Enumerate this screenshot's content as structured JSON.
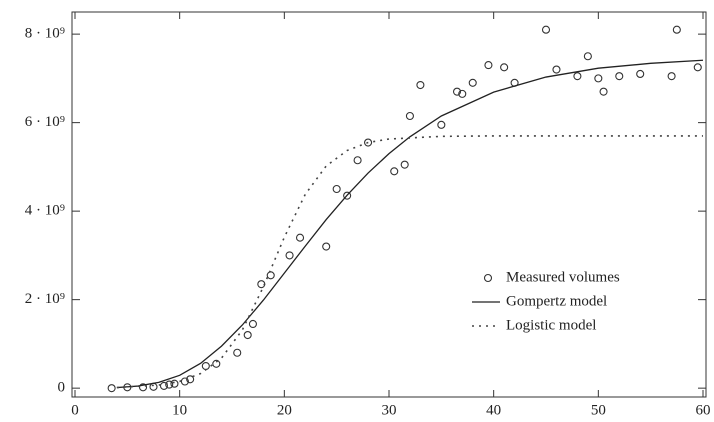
{
  "chart_data": {
    "type": "scatter-line",
    "xlim": [
      0,
      60
    ],
    "xticks": [
      0,
      10,
      20,
      30,
      40,
      50,
      60
    ],
    "ylim": [
      -200000000,
      8500000000
    ],
    "yticks": [
      0,
      {
        "value": 2000000000.0,
        "label": "2 · 10⁹"
      },
      {
        "value": 4000000000.0,
        "label": "4 · 10⁹"
      },
      {
        "value": 6000000000.0,
        "label": "6 · 10⁹"
      },
      {
        "value": 8000000000.0,
        "label": "8 · 10⁹"
      }
    ],
    "grid": false,
    "legend": "lower right",
    "series": [
      {
        "name": "Measured volumes",
        "type": "scatter",
        "color": "#333",
        "x": [
          3.5,
          5,
          6.5,
          7.5,
          8.5,
          9,
          9.5,
          10.5,
          11,
          12.5,
          13.5,
          15.5,
          16.5,
          17,
          17.8,
          18.7,
          20.5,
          21.5,
          24,
          25,
          26,
          27,
          28,
          30.5,
          31.5,
          32,
          33,
          35,
          36.5,
          37,
          38,
          39.5,
          41,
          42,
          45,
          46,
          48,
          49,
          50,
          50.5,
          52,
          54,
          57,
          57.5,
          59.5
        ],
        "values": [
          0,
          20000000.0,
          20000000.0,
          30000000.0,
          50000000.0,
          80000000.0,
          100000000.0,
          150000000.0,
          200000000.0,
          500000000.0,
          550000000.0,
          800000000.0,
          1200000000.0,
          1450000000.0,
          2350000000.0,
          2550000000.0,
          3000000000.0,
          3400000000.0,
          3200000000.0,
          4500000000.0,
          4350000000.0,
          5150000000.0,
          5550000000.0,
          4900000000.0,
          5050000000.0,
          6150000000.0,
          6850000000.0,
          5950000000.0,
          6700000000.0,
          6650000000.0,
          6900000000.0,
          7300000000.0,
          7250000000.0,
          6900000000.0,
          8100000000.0,
          7200000000.0,
          7050000000.0,
          7500000000.0,
          7000000000.0,
          6700000000.0,
          7050000000.0,
          7100000000.0,
          7050000000.0,
          8100000000.0,
          7250000000.0
        ]
      },
      {
        "name": "Gompertz model",
        "type": "line",
        "style": "solid",
        "color": "#222",
        "x": [
          4,
          6,
          8,
          10,
          12,
          14,
          16,
          18,
          20,
          22,
          24,
          26,
          28,
          30,
          32,
          35,
          40,
          45,
          50,
          55,
          60
        ],
        "values": [
          13000000.0,
          47000000.0,
          130000000.0,
          290000000.0,
          560000000.0,
          950000000.0,
          1430000000.0,
          1990000000.0,
          2600000000.0,
          3210000000.0,
          3810000000.0,
          4360000000.0,
          4860000000.0,
          5300000000.0,
          5680000000.0,
          6150000000.0,
          6690000000.0,
          7030000000.0,
          7230000000.0,
          7340000000.0,
          7410000000.0
        ]
      },
      {
        "name": "Logistic model",
        "type": "line",
        "style": "dotted",
        "color": "#444",
        "x": [
          4,
          8,
          10,
          12,
          14,
          16,
          18,
          20,
          22,
          24,
          26,
          28,
          30,
          35,
          40,
          50,
          60
        ],
        "values": [
          14000000.0,
          69000000.0,
          152000000.0,
          330000000.0,
          680000000.0,
          1320000000.0,
          2290000000.0,
          3410000000.0,
          4380000000.0,
          5020000000.0,
          5370000000.0,
          5550000000.0,
          5630000000.0,
          5690000000.0,
          5700000000.0,
          5700000000.0,
          5700000000.0
        ]
      }
    ]
  }
}
